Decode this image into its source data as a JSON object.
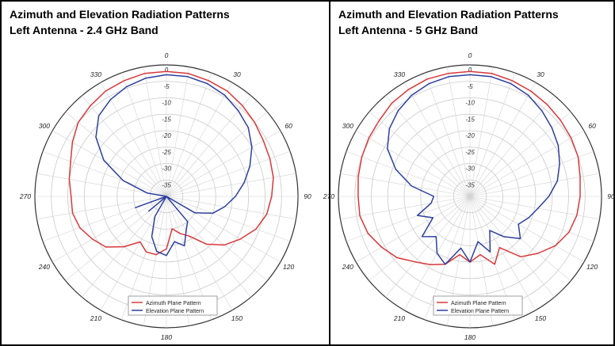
{
  "chart_data": [
    {
      "type": "polar-line",
      "title": "Azimuth and Elevation Radiation Patterns",
      "subtitle": "Left Antenna - 2.4 GHz Band",
      "radial_range": [
        -40,
        0
      ],
      "radial_ticks": [
        "0",
        "-5",
        "-10",
        "-15",
        "-20",
        "-25",
        "-30",
        "-35"
      ],
      "angle_ticks": [
        "0",
        "30",
        "60",
        "90",
        "120",
        "150",
        "180",
        "210",
        "240",
        "270",
        "300",
        "330"
      ],
      "grid": true,
      "legend_position": "bottom",
      "series": [
        {
          "name": "Azimuth Plane Pattern",
          "color": "#d8383a",
          "angles": [
            0,
            10,
            20,
            30,
            40,
            50,
            60,
            70,
            80,
            90,
            100,
            110,
            120,
            130,
            140,
            150,
            160,
            170,
            180,
            190,
            200,
            210,
            220,
            230,
            240,
            250,
            260,
            270,
            280,
            290,
            300,
            310,
            320,
            330,
            340,
            350
          ],
          "values": [
            -2,
            -2,
            -2.5,
            -3,
            -4,
            -5,
            -6,
            -6.5,
            -7,
            -8,
            -9,
            -11,
            -14,
            -17,
            -21,
            -26,
            -28,
            -30,
            -24,
            -22,
            -22,
            -24,
            -20,
            -16,
            -14,
            -12,
            -11,
            -11,
            -10,
            -9,
            -7,
            -5,
            -4,
            -3,
            -2.5,
            -2
          ]
        },
        {
          "name": "Elevation Plane Pattern",
          "color": "#2c3f9e",
          "angles": [
            0,
            10,
            20,
            30,
            40,
            50,
            60,
            70,
            80,
            90,
            100,
            110,
            120,
            130,
            140,
            150,
            160,
            170,
            180,
            190,
            200,
            210,
            220,
            230,
            240,
            250,
            260,
            270,
            280,
            290,
            300,
            310,
            320,
            330,
            340,
            350
          ],
          "values": [
            -3,
            -3,
            -3.5,
            -4.5,
            -6,
            -7.5,
            -10,
            -13,
            -16,
            -19,
            -22,
            -25,
            -30,
            -40,
            -30,
            -28,
            -24,
            -26,
            -22,
            -23,
            -27,
            -33,
            -40,
            -33,
            -40,
            -30,
            -40,
            -40,
            -34,
            -26,
            -18,
            -12,
            -8,
            -6,
            -4.5,
            -3.5
          ]
        }
      ]
    },
    {
      "type": "polar-line",
      "title": "Azimuth and Elevation Radiation Patterns",
      "subtitle": "Left Antenna - 5 GHz Band",
      "radial_range": [
        -40,
        0
      ],
      "radial_ticks": [
        "0",
        "-5",
        "-10",
        "-15",
        "-20",
        "-25",
        "-30",
        "-35"
      ],
      "angle_ticks": [
        "0",
        "30",
        "60",
        "90",
        "120",
        "150",
        "180",
        "210",
        "240",
        "270",
        "300",
        "330"
      ],
      "grid": true,
      "legend_position": "bottom",
      "series": [
        {
          "name": "Azimuth Plane Pattern",
          "color": "#d8383a",
          "angles": [
            0,
            10,
            20,
            30,
            40,
            50,
            60,
            70,
            80,
            90,
            100,
            110,
            120,
            130,
            140,
            150,
            160,
            170,
            180,
            190,
            200,
            210,
            220,
            230,
            240,
            250,
            260,
            270,
            280,
            290,
            300,
            310,
            320,
            330,
            340,
            350
          ],
          "values": [
            -2,
            -2,
            -2.5,
            -3,
            -3.5,
            -4,
            -4.5,
            -5,
            -6,
            -6.5,
            -7,
            -8,
            -10,
            -13,
            -16,
            -22,
            -18,
            -22,
            -20,
            -22,
            -18,
            -16,
            -14,
            -11,
            -9,
            -7,
            -6,
            -6,
            -5.5,
            -5,
            -4.5,
            -4,
            -3,
            -2.5,
            -2,
            -2
          ]
        },
        {
          "name": "Elevation Plane Pattern",
          "color": "#2c3f9e",
          "angles": [
            0,
            10,
            20,
            30,
            40,
            50,
            60,
            70,
            80,
            90,
            100,
            110,
            120,
            130,
            140,
            150,
            160,
            170,
            180,
            190,
            200,
            210,
            220,
            230,
            240,
            250,
            260,
            270,
            280,
            290,
            300,
            310,
            320,
            330,
            340,
            350
          ],
          "values": [
            -3,
            -3,
            -3.5,
            -4.5,
            -6,
            -7.5,
            -9,
            -11,
            -13,
            -16,
            -19,
            -21,
            -23,
            -20,
            -24,
            -28,
            -22,
            -26,
            -20,
            -24,
            -18,
            -20,
            -24,
            -21,
            -27,
            -23,
            -28,
            -29,
            -22,
            -16,
            -11,
            -8,
            -6,
            -4.5,
            -3.5,
            -3
          ]
        }
      ]
    }
  ]
}
